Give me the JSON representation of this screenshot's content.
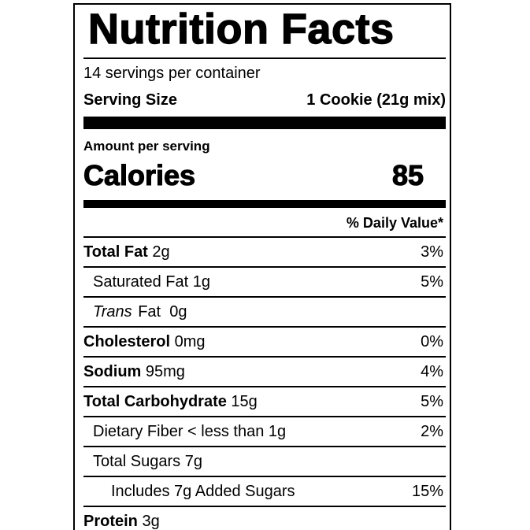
{
  "colors": {
    "text": "#000000",
    "background": "#ffffff",
    "rule": "#000000"
  },
  "label": {
    "title": "Nutrition Facts",
    "servings_per_container": "14 servings per container",
    "serving_size_label": "Serving Size",
    "serving_size_value": "1 Cookie (21g mix)",
    "amount_per_serving": "Amount per serving",
    "calories_label": "Calories",
    "calories_value": "85",
    "daily_value_header": "% Daily Value*",
    "rows": [
      {
        "indent": 0,
        "parts": [
          {
            "t": "Total Fat",
            "b": 1
          },
          {
            "t": " 2g"
          }
        ],
        "dv": "3%"
      },
      {
        "indent": 1,
        "parts": [
          {
            "t": "Saturated Fat 1g"
          }
        ],
        "dv": "5%"
      },
      {
        "indent": 1,
        "parts": [
          {
            "t": "Trans",
            "i": 1
          },
          {
            "t": " Fat  0g"
          }
        ],
        "dv": ""
      },
      {
        "indent": 0,
        "parts": [
          {
            "t": "Cholesterol",
            "b": 1
          },
          {
            "t": " 0mg"
          }
        ],
        "dv": "0%"
      },
      {
        "indent": 0,
        "parts": [
          {
            "t": "Sodium",
            "b": 1
          },
          {
            "t": " 95mg"
          }
        ],
        "dv": "4%"
      },
      {
        "indent": 0,
        "parts": [
          {
            "t": "Total Carbohydrate",
            "b": 1
          },
          {
            "t": " 15g"
          }
        ],
        "dv": "5%"
      },
      {
        "indent": 1,
        "parts": [
          {
            "t": "Dietary Fiber < less than 1g"
          }
        ],
        "dv": "2%"
      },
      {
        "indent": 1,
        "parts": [
          {
            "t": "Total Sugars 7g"
          }
        ],
        "dv": ""
      },
      {
        "indent": 2,
        "parts": [
          {
            "t": "Includes 7g Added Sugars"
          }
        ],
        "dv": "15%"
      },
      {
        "indent": 0,
        "parts": [
          {
            "t": "Protein",
            "b": 1
          },
          {
            "t": " 3g"
          }
        ],
        "dv": ""
      }
    ]
  }
}
